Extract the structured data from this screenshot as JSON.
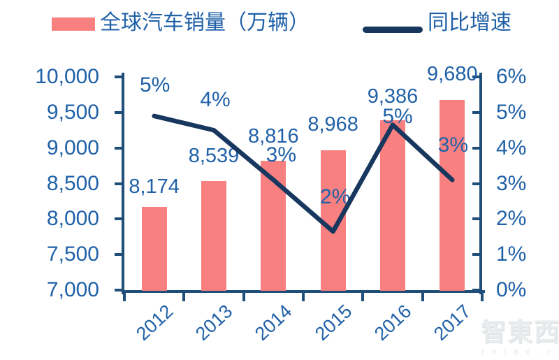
{
  "legend": {
    "bar": {
      "label": "全球汽车销量（万辆）",
      "color": "#F88080"
    },
    "line": {
      "label": "同比增速",
      "color": "#17375E"
    }
  },
  "chart_data": {
    "type": "bar+line",
    "categories": [
      "2012",
      "2013",
      "2014",
      "2015",
      "2016",
      "2017"
    ],
    "series": [
      {
        "name": "全球汽车销量（万辆）",
        "type": "bar",
        "axis": "left",
        "values": [
          8174,
          8539,
          8816,
          8968,
          9386,
          9680
        ],
        "data_labels": [
          "8,174",
          "8,539",
          "8,816",
          "8,968",
          "9,386",
          "9,680"
        ],
        "color": "#F88080"
      },
      {
        "name": "同比增速",
        "type": "line",
        "axis": "right",
        "values": [
          4.9,
          4.5,
          3.1,
          1.65,
          4.65,
          3.1
        ],
        "data_labels": [
          "5%",
          "4%",
          "3%",
          "2%",
          "5%",
          "3%"
        ],
        "color": "#17375E"
      }
    ],
    "left_axis": {
      "min": 7000,
      "max": 10000,
      "tick_labels": [
        "10,000",
        "9,500",
        "9,000",
        "8,500",
        "8,000",
        "7,500",
        "7,000"
      ]
    },
    "right_axis": {
      "min": 0,
      "max": 6,
      "tick_labels": [
        "6%",
        "5%",
        "4%",
        "3%",
        "2%",
        "1%",
        "0%"
      ]
    },
    "grid": false,
    "legend_position": "top",
    "colors": {
      "text": "#2061A8",
      "axis": "#1F4E79",
      "bar": "#F88080",
      "line": "#17375E"
    }
  },
  "watermark": {
    "brand": "智東西",
    "domain": "z h i d x . c o m"
  }
}
